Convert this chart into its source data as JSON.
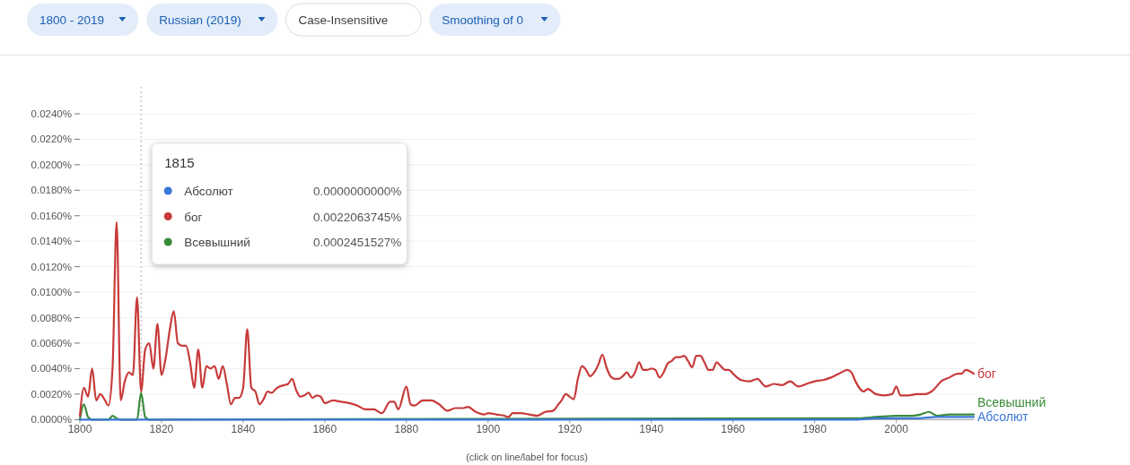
{
  "chart_data": {
    "type": "line",
    "xlim": [
      1800,
      2019
    ],
    "xticks": [
      1800,
      1820,
      1840,
      1860,
      1880,
      1900,
      1920,
      1940,
      1960,
      1980,
      2000
    ],
    "ylim": [
      0,
      0.024
    ],
    "yticks": [
      {
        "value": 0,
        "label": "0.0000%"
      },
      {
        "value": 0.002,
        "label": "0.0020%"
      },
      {
        "value": 0.004,
        "label": "0.0040%"
      },
      {
        "value": 0.006,
        "label": "0.0060%"
      },
      {
        "value": 0.008,
        "label": "0.0080%"
      },
      {
        "value": 0.01,
        "label": "0.0100%"
      },
      {
        "value": 0.012,
        "label": "0.0120%"
      },
      {
        "value": 0.014,
        "label": "0.0140%"
      },
      {
        "value": 0.016,
        "label": "0.0160%"
      },
      {
        "value": 0.018,
        "label": "0.0180%"
      },
      {
        "value": 0.02,
        "label": "0.0200%"
      },
      {
        "value": 0.022,
        "label": "0.0220%"
      },
      {
        "value": 0.024,
        "label": "0.0240%"
      }
    ],
    "grid": "y",
    "legend": "top left",
    "series": [
      {
        "name": "Абсолют",
        "color": "#3b78d8",
        "x": [
          1800,
          1990,
          1995,
          2000,
          2005,
          2010,
          2015,
          2019
        ],
        "values": [
          0,
          0,
          0.0001,
          0.0001,
          0.0001,
          0.0002,
          0.0002,
          0.0002
        ]
      },
      {
        "name": "бог",
        "color": "#c83a3a",
        "x": [
          1800,
          1801,
          1802,
          1803,
          1804,
          1805,
          1806,
          1807,
          1808,
          1809,
          1810,
          1811,
          1812,
          1813,
          1814,
          1815,
          1816,
          1817,
          1818,
          1819,
          1820,
          1821,
          1822,
          1823,
          1824,
          1825,
          1826,
          1827,
          1828,
          1829,
          1830,
          1831,
          1832,
          1833,
          1834,
          1835,
          1836,
          1837,
          1838,
          1839,
          1840,
          1841,
          1842,
          1843,
          1844,
          1845,
          1846,
          1847,
          1848,
          1849,
          1850,
          1851,
          1852,
          1853,
          1854,
          1855,
          1856,
          1857,
          1858,
          1859,
          1860,
          1862,
          1864,
          1866,
          1868,
          1870,
          1872,
          1874,
          1876,
          1877,
          1878,
          1880,
          1881,
          1882,
          1884,
          1886,
          1888,
          1890,
          1892,
          1894,
          1895,
          1897,
          1899,
          1900,
          1902,
          1904,
          1905,
          1906,
          1908,
          1910,
          1912,
          1914,
          1916,
          1917,
          1918,
          1919,
          1921,
          1922,
          1923,
          1924,
          1925,
          1926,
          1927,
          1928,
          1929,
          1930,
          1931,
          1932,
          1933,
          1934,
          1935,
          1936,
          1937,
          1938,
          1939,
          1940,
          1941,
          1942,
          1943,
          1944,
          1945,
          1946,
          1947,
          1948,
          1949,
          1950,
          1951,
          1952,
          1953,
          1954,
          1955,
          1956,
          1957,
          1958,
          1959,
          1960,
          1962,
          1964,
          1966,
          1968,
          1970,
          1972,
          1974,
          1976,
          1978,
          1980,
          1982,
          1984,
          1986,
          1988,
          1989,
          1990,
          1992,
          1993,
          1995,
          1997,
          1999,
          2000,
          2001,
          2003,
          2005,
          2007,
          2009,
          2011,
          2013,
          2015,
          2016,
          2017,
          2019
        ],
        "values": [
          0.0003,
          0.0025,
          0.0018,
          0.004,
          0.0015,
          0.002,
          0.0016,
          0.0011,
          0.004,
          0.0155,
          0.0015,
          0.003,
          0.0037,
          0.0035,
          0.0096,
          0.0022,
          0.0055,
          0.006,
          0.004,
          0.0075,
          0.0035,
          0.0048,
          0.007,
          0.0085,
          0.006,
          0.0058,
          0.0058,
          0.0045,
          0.0025,
          0.0055,
          0.0025,
          0.0042,
          0.004,
          0.0042,
          0.0032,
          0.0042,
          0.0028,
          0.0012,
          0.0017,
          0.0017,
          0.0025,
          0.0071,
          0.0025,
          0.0022,
          0.0012,
          0.0016,
          0.0022,
          0.0021,
          0.0024,
          0.0026,
          0.0027,
          0.0028,
          0.0032,
          0.0023,
          0.0018,
          0.0019,
          0.0021,
          0.0017,
          0.0019,
          0.0018,
          0.0013,
          0.0015,
          0.0014,
          0.0013,
          0.0011,
          0.0008,
          0.0008,
          0.0005,
          0.0014,
          0.0014,
          0.0008,
          0.0026,
          0.0012,
          0.0011,
          0.0015,
          0.0015,
          0.0012,
          0.0007,
          0.0009,
          0.0009,
          0.001,
          0.0006,
          0.0004,
          0.0005,
          0.0004,
          0.0003,
          0.0002,
          0.0005,
          0.0005,
          0.0004,
          0.0003,
          0.0006,
          0.0007,
          0.0011,
          0.0015,
          0.002,
          0.0016,
          0.0032,
          0.0042,
          0.0039,
          0.0034,
          0.0037,
          0.0043,
          0.0051,
          0.0041,
          0.0034,
          0.0032,
          0.0032,
          0.0034,
          0.0037,
          0.0033,
          0.0037,
          0.0045,
          0.0039,
          0.0039,
          0.004,
          0.0039,
          0.0033,
          0.0037,
          0.0044,
          0.0046,
          0.0049,
          0.0049,
          0.005,
          0.0046,
          0.0041,
          0.005,
          0.005,
          0.0045,
          0.0039,
          0.0039,
          0.0045,
          0.0042,
          0.0039,
          0.0039,
          0.0036,
          0.0031,
          0.003,
          0.0032,
          0.0026,
          0.0028,
          0.0027,
          0.003,
          0.0026,
          0.0028,
          0.003,
          0.0031,
          0.0033,
          0.0036,
          0.0039,
          0.0037,
          0.003,
          0.0022,
          0.0024,
          0.002,
          0.0019,
          0.002,
          0.0026,
          0.0019,
          0.0019,
          0.002,
          0.002,
          0.0023,
          0.003,
          0.0033,
          0.0036,
          0.0036,
          0.0039,
          0.0036
        ]
      },
      {
        "name": "Всевышний",
        "color": "#3a8a3a",
        "x": [
          1800,
          1801,
          1802,
          1803,
          1807,
          1808,
          1809,
          1810,
          1814,
          1815,
          1816,
          1817,
          1990,
          1995,
          2000,
          2004,
          2006,
          2008,
          2010,
          2013,
          2016,
          2019
        ],
        "values": [
          0,
          0.0012,
          0.0002,
          0,
          0,
          0.0003,
          0.0001,
          0,
          0,
          0.0021,
          0.0002,
          0,
          0.0001,
          0.0002,
          0.0003,
          0.0003,
          0.0004,
          0.0006,
          0.0003,
          0.0004,
          0.0004,
          0.0004
        ]
      }
    ],
    "ref_lines": [
      {
        "axis": "x",
        "value": 1815,
        "color": "#b0b0b0",
        "line_style": "dotted"
      }
    ],
    "annotations": [
      "1815",
      "0.0000000000%",
      "0.0022063745%",
      "0.0002451527%",
      "1800 - 2019",
      "Russian (2019)",
      "Case-Insensitive",
      "Smoothing of 0",
      "(click on line/label for focus)"
    ]
  }
}
